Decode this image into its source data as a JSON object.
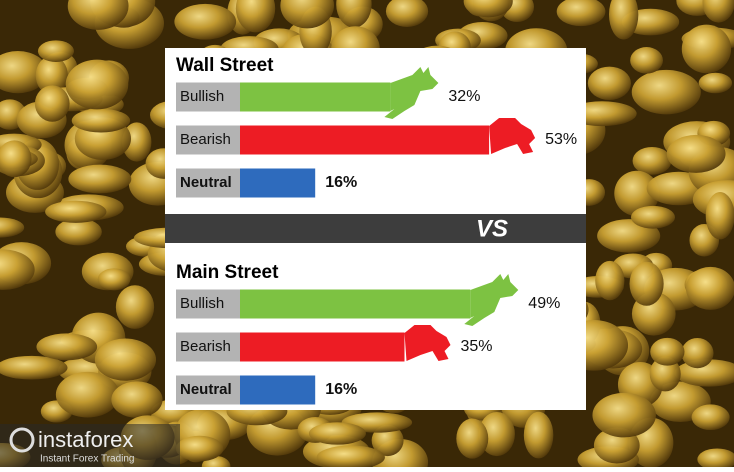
{
  "chart_data": [
    {
      "type": "bar",
      "title": "Wall Street",
      "categories": [
        "Bullish",
        "Bearish",
        "Neutral"
      ],
      "values": [
        32,
        53,
        16
      ],
      "value_labels": [
        "32%",
        "53%",
        "16%"
      ],
      "colors": [
        "#7dc242",
        "#ed1c24",
        "#2e6bbd"
      ]
    },
    {
      "type": "bar",
      "title": "Main Street",
      "categories": [
        "Bullish",
        "Bearish",
        "Neutral"
      ],
      "values": [
        49,
        35,
        16
      ],
      "value_labels": [
        "49%",
        "35%",
        "16%"
      ],
      "colors": [
        "#7dc242",
        "#ed1c24",
        "#2e6bbd"
      ]
    }
  ],
  "divider": "VS",
  "watermark": {
    "brand": "instaforex",
    "tagline": "Instant Forex Trading"
  }
}
